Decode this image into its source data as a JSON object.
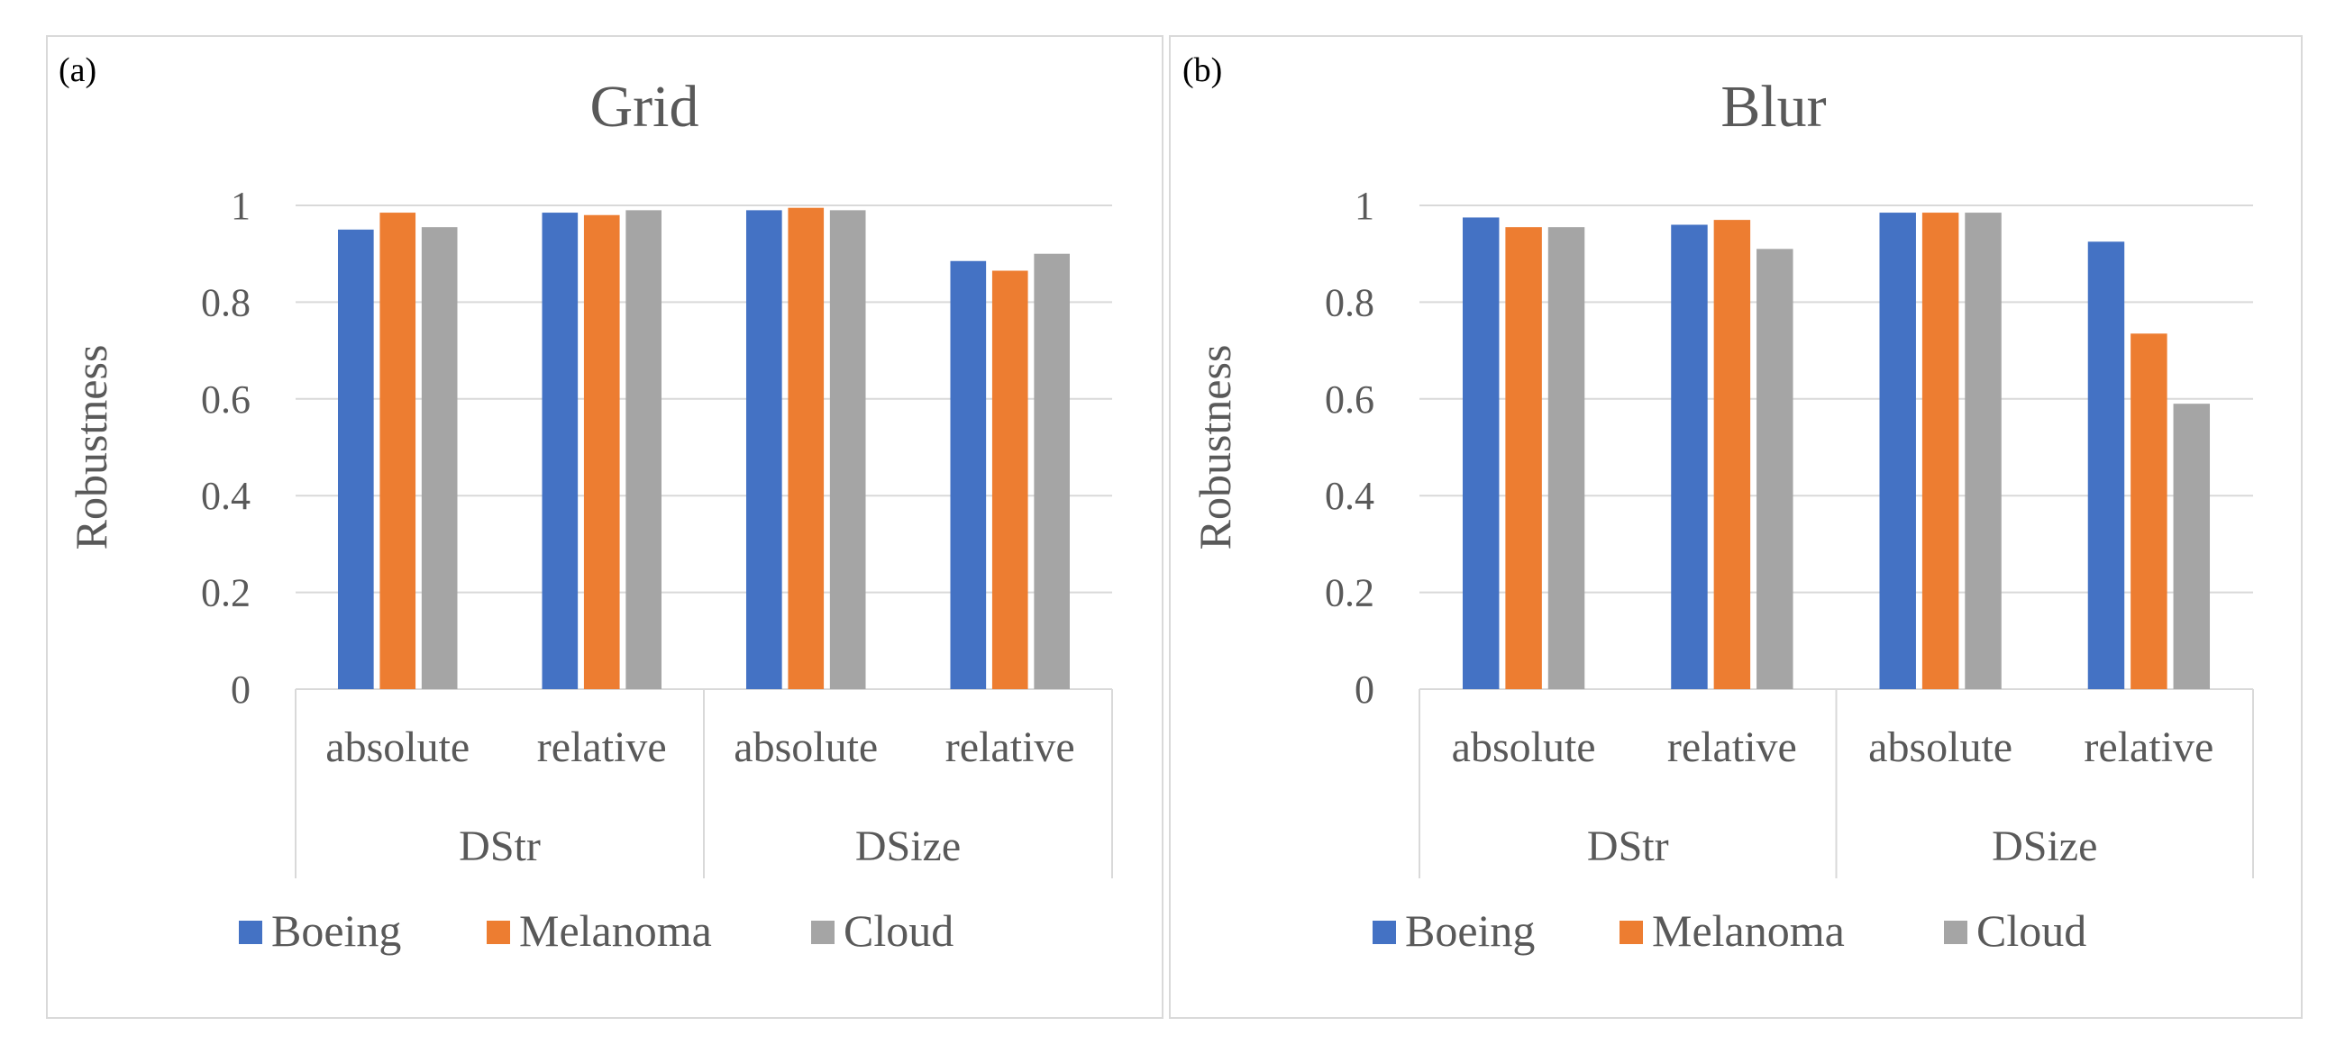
{
  "colors": {
    "boeing": "#4472c4",
    "melanoma": "#ed7d31",
    "cloud": "#a5a5a5",
    "gridline": "#d9d9d9",
    "axis_text": "#595959"
  },
  "chart_data": [
    {
      "type": "bar",
      "panel_label": "(a)",
      "title": "Grid",
      "ylabel": "Robustness",
      "xlabel": "",
      "ylim": [
        0,
        1
      ],
      "yticks": [
        "0",
        "0.2",
        "0.4",
        "0.6",
        "0.8",
        "1"
      ],
      "yticks_values": [
        0,
        0.2,
        0.4,
        0.6,
        0.8,
        1
      ],
      "grid": true,
      "legend_position": "bottom",
      "categories": [
        "absolute",
        "relative",
        "absolute",
        "relative"
      ],
      "groups": [
        {
          "name": "DStr",
          "span": [
            0,
            1
          ]
        },
        {
          "name": "DSize",
          "span": [
            2,
            3
          ]
        }
      ],
      "series": [
        {
          "name": "Boeing",
          "values": [
            0.95,
            0.985,
            0.99,
            0.885
          ]
        },
        {
          "name": "Melanoma",
          "values": [
            0.985,
            0.98,
            0.995,
            0.865
          ]
        },
        {
          "name": "Cloud",
          "values": [
            0.955,
            0.99,
            0.99,
            0.9
          ]
        }
      ]
    },
    {
      "type": "bar",
      "panel_label": "(b)",
      "title": "Blur",
      "ylabel": "Robustness",
      "xlabel": "",
      "ylim": [
        0,
        1
      ],
      "yticks": [
        "0",
        "0.2",
        "0.4",
        "0.6",
        "0.8",
        "1"
      ],
      "yticks_values": [
        0,
        0.2,
        0.4,
        0.6,
        0.8,
        1
      ],
      "grid": true,
      "legend_position": "bottom",
      "categories": [
        "absolute",
        "relative",
        "absolute",
        "relative"
      ],
      "groups": [
        {
          "name": "DStr",
          "span": [
            0,
            1
          ]
        },
        {
          "name": "DSize",
          "span": [
            2,
            3
          ]
        }
      ],
      "series": [
        {
          "name": "Boeing",
          "values": [
            0.975,
            0.96,
            0.985,
            0.925
          ]
        },
        {
          "name": "Melanoma",
          "values": [
            0.955,
            0.97,
            0.985,
            0.735
          ]
        },
        {
          "name": "Cloud",
          "values": [
            0.955,
            0.91,
            0.985,
            0.59
          ]
        }
      ]
    }
  ]
}
